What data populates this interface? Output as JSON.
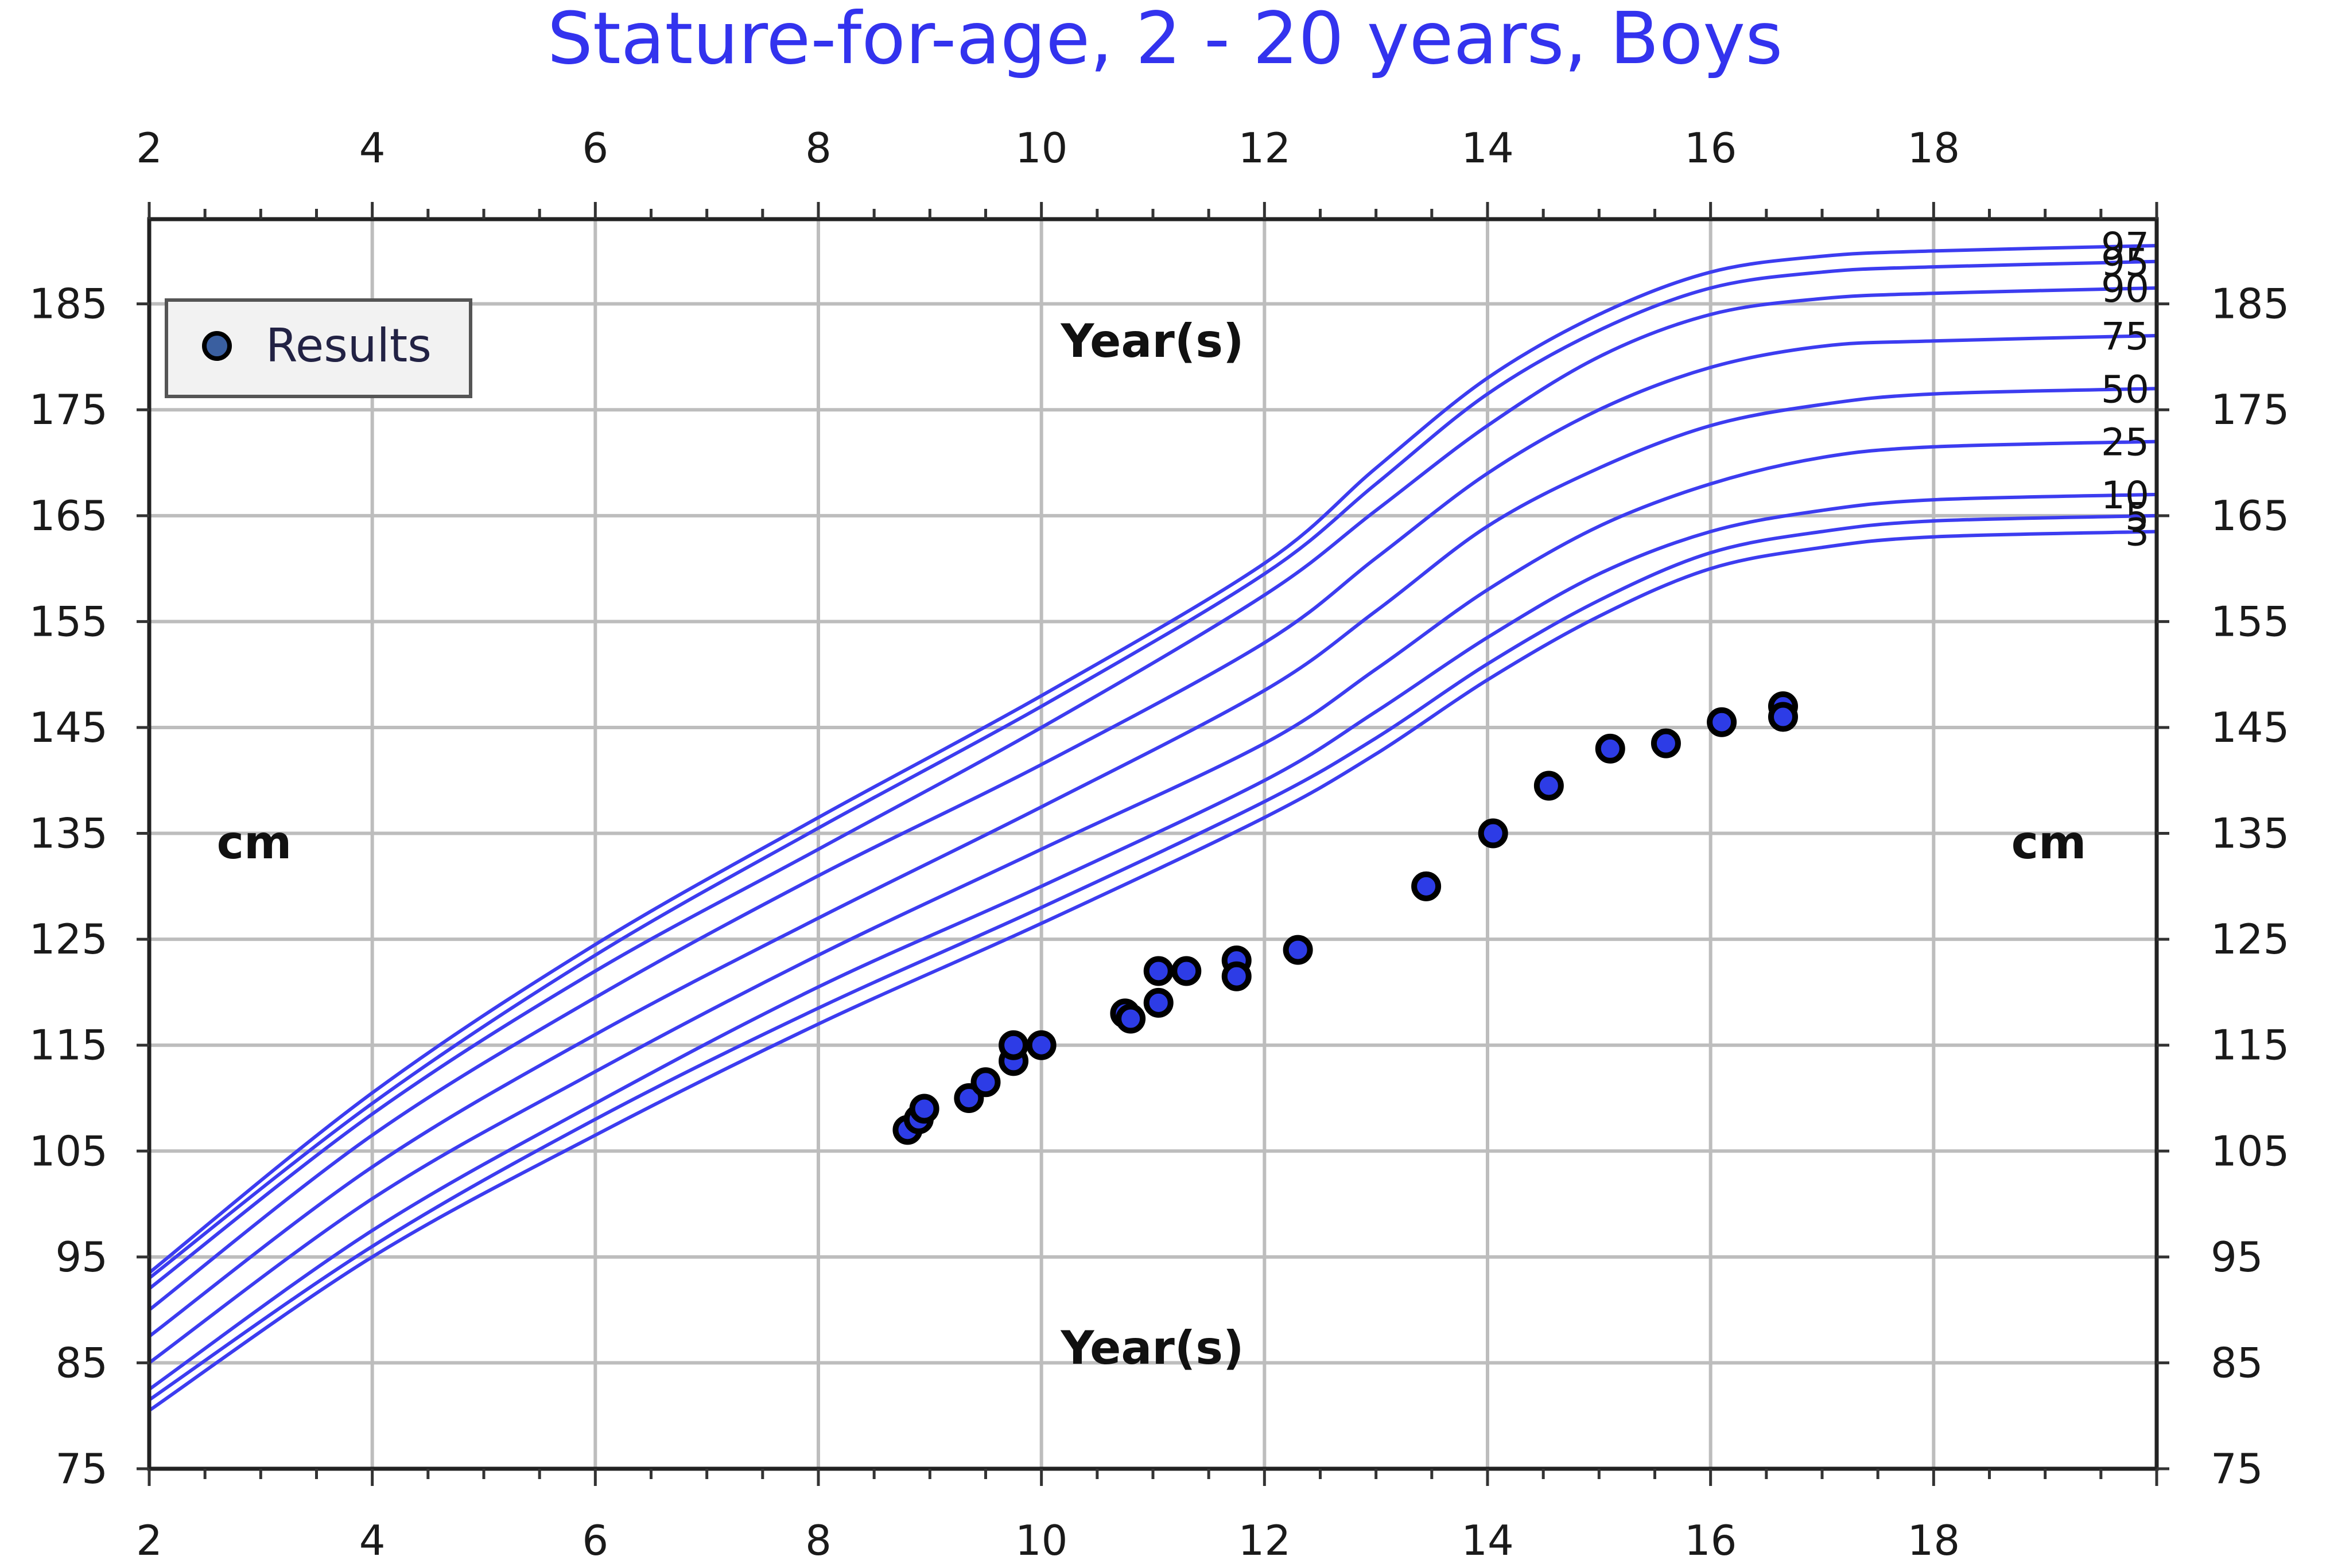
{
  "chart_data": {
    "type": "line",
    "title": "Stature-for-age, 2 - 20 years, Boys",
    "xlabel": "Year(s)",
    "ylabel": "cm",
    "xlim": [
      2,
      20
    ],
    "ylim": [
      75,
      193
    ],
    "x_ticks": [
      2,
      4,
      6,
      8,
      10,
      12,
      14,
      16,
      18
    ],
    "y_ticks": [
      75,
      85,
      95,
      105,
      115,
      125,
      135,
      145,
      155,
      165,
      175,
      185
    ],
    "grid": true,
    "legend": {
      "placement": "top-left",
      "entries": [
        "Results"
      ]
    },
    "percentile_curves": [
      {
        "name": "3",
        "x": [
          2,
          4,
          6,
          8,
          10,
          12,
          13,
          14,
          15,
          16,
          17,
          18,
          20
        ],
        "values": [
          80.5,
          95.0,
          106.5,
          117.0,
          126.5,
          136.5,
          142.5,
          149.5,
          155.5,
          160.0,
          162.0,
          163.0,
          163.5
        ]
      },
      {
        "name": "5",
        "x": [
          2,
          4,
          6,
          8,
          10,
          12,
          13,
          14,
          15,
          16,
          17,
          18,
          20
        ],
        "values": [
          81.5,
          96.0,
          108.0,
          118.5,
          128.0,
          138.0,
          144.0,
          151.0,
          157.0,
          161.5,
          163.5,
          164.5,
          165.0
        ]
      },
      {
        "name": "10",
        "x": [
          2,
          4,
          6,
          8,
          10,
          12,
          13,
          14,
          15,
          16,
          17,
          18,
          20
        ],
        "values": [
          82.5,
          97.5,
          109.5,
          120.5,
          130.0,
          140.0,
          146.5,
          153.5,
          159.5,
          163.5,
          165.5,
          166.5,
          167.0
        ]
      },
      {
        "name": "25",
        "x": [
          2,
          4,
          6,
          8,
          10,
          12,
          13,
          14,
          15,
          16,
          17,
          18,
          20
        ],
        "values": [
          85.0,
          100.5,
          112.5,
          123.5,
          133.5,
          143.5,
          150.5,
          158.0,
          164.0,
          168.0,
          170.5,
          171.5,
          172.0
        ]
      },
      {
        "name": "50",
        "x": [
          2,
          4,
          6,
          8,
          10,
          12,
          13,
          14,
          15,
          16,
          17,
          18,
          20
        ],
        "values": [
          87.5,
          103.5,
          116.0,
          127.0,
          137.5,
          148.5,
          156.0,
          164.0,
          169.5,
          173.5,
          175.5,
          176.5,
          177.0
        ]
      },
      {
        "name": "75",
        "x": [
          2,
          4,
          6,
          8,
          10,
          12,
          13,
          14,
          15,
          16,
          17,
          18,
          20
        ],
        "values": [
          90.0,
          106.5,
          119.5,
          131.0,
          141.5,
          153.0,
          161.0,
          169.0,
          175.0,
          179.0,
          181.0,
          181.5,
          182.0
        ]
      },
      {
        "name": "90",
        "x": [
          2,
          4,
          6,
          8,
          10,
          12,
          13,
          14,
          15,
          16,
          17,
          18,
          20
        ],
        "values": [
          92.0,
          108.5,
          122.0,
          133.5,
          145.0,
          157.5,
          165.5,
          173.5,
          180.0,
          184.0,
          185.5,
          186.0,
          186.5
        ]
      },
      {
        "name": "95",
        "x": [
          2,
          4,
          6,
          8,
          10,
          12,
          13,
          14,
          15,
          16,
          17,
          18,
          20
        ],
        "values": [
          93.0,
          109.5,
          123.5,
          135.5,
          147.0,
          159.5,
          168.0,
          176.5,
          182.5,
          186.5,
          188.0,
          188.5,
          189.0
        ]
      },
      {
        "name": "97",
        "x": [
          2,
          4,
          6,
          8,
          10,
          12,
          13,
          14,
          15,
          16,
          17,
          18,
          20
        ],
        "values": [
          93.5,
          110.5,
          124.5,
          136.5,
          148.0,
          160.5,
          169.5,
          178.0,
          184.0,
          188.0,
          189.5,
          190.0,
          190.5
        ]
      }
    ],
    "results": {
      "name": "Results",
      "points": [
        [
          8.8,
          107.0
        ],
        [
          8.9,
          108.0
        ],
        [
          8.95,
          109.0
        ],
        [
          9.35,
          110.0
        ],
        [
          9.5,
          111.5
        ],
        [
          9.75,
          113.5
        ],
        [
          9.75,
          115.0
        ],
        [
          10.0,
          115.0
        ],
        [
          10.75,
          118.0
        ],
        [
          10.8,
          117.5
        ],
        [
          11.05,
          122.0
        ],
        [
          11.05,
          119.0
        ],
        [
          11.3,
          122.0
        ],
        [
          11.75,
          123.0
        ],
        [
          11.75,
          121.5
        ],
        [
          12.3,
          124.0
        ],
        [
          13.45,
          130.0
        ],
        [
          14.05,
          135.0
        ],
        [
          14.55,
          139.5
        ],
        [
          15.1,
          143.0
        ],
        [
          15.6,
          143.5
        ],
        [
          16.1,
          145.5
        ],
        [
          16.65,
          147.0
        ],
        [
          16.65,
          146.0
        ]
      ]
    }
  },
  "colors": {
    "curve": "#3c3cf0",
    "point_fill": "#2d3ce6",
    "point_edge": "#000000",
    "title": "#3333ee",
    "grid": "#bdbdbd",
    "frame": "#222222",
    "legend_bg": "#f2f2f2"
  }
}
